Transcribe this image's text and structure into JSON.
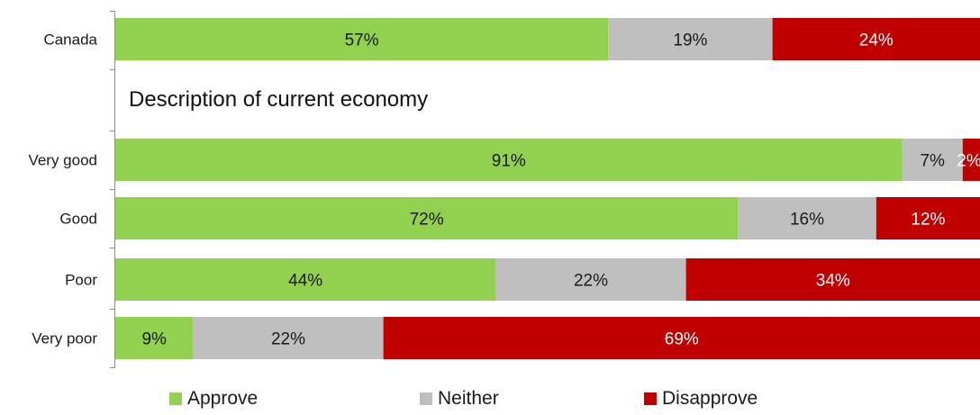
{
  "chart_data": {
    "type": "bar",
    "orientation": "horizontal",
    "stacked": true,
    "section_heading": "Description of current economy",
    "categories": [
      "Canada",
      "Very good",
      "Good",
      "Poor",
      "Very poor"
    ],
    "series": [
      {
        "name": "Approve",
        "color": "#92d050",
        "values": [
          57,
          91,
          72,
          44,
          9
        ],
        "labels": [
          "57%",
          "91%",
          "72%",
          "44%",
          "9%"
        ]
      },
      {
        "name": "Neither",
        "color": "#bfbfbf",
        "values": [
          19,
          7,
          16,
          22,
          22
        ],
        "labels": [
          "19%",
          "7%",
          "16%",
          "22%",
          "22%"
        ]
      },
      {
        "name": "Disapprove",
        "color": "#c00000",
        "values": [
          24,
          2,
          12,
          34,
          69
        ],
        "labels": [
          "24%",
          "2%",
          "12%",
          "34%",
          "69%"
        ]
      }
    ],
    "xlim": [
      0,
      100
    ],
    "grid": false,
    "legend_position": "bottom",
    "label_colors": {
      "Approve": "#1a1a1a",
      "Neither": "#1a1a1a",
      "Disapprove": "#ffffff"
    }
  }
}
